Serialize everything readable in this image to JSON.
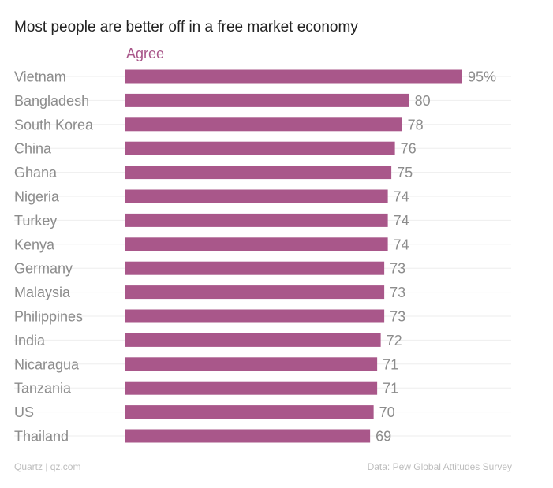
{
  "chart_data": {
    "type": "bar",
    "orientation": "horizontal",
    "title": "Most people are better off in a free market economy",
    "series": [
      {
        "name": "Agree",
        "color": "#a9578a",
        "values": [
          95,
          80,
          78,
          76,
          75,
          74,
          74,
          74,
          73,
          73,
          73,
          72,
          71,
          71,
          70,
          69
        ],
        "value_labels": [
          "95%",
          "80",
          "78",
          "76",
          "75",
          "74",
          "74",
          "74",
          "73",
          "73",
          "73",
          "72",
          "71",
          "71",
          "70",
          "69"
        ]
      }
    ],
    "categories": [
      "Vietnam",
      "Bangladesh",
      "South Korea",
      "China",
      "Ghana",
      "Nigeria",
      "Turkey",
      "Kenya",
      "Germany",
      "Malaysia",
      "Philippines",
      "India",
      "Nicaragua",
      "Tanzania",
      "US",
      "Thailand"
    ],
    "xlim": [
      0,
      100
    ],
    "grid": true,
    "colors": {
      "bar": "#a9578a",
      "label_text": "#8c8c8c",
      "value_text": "#8c8c8c",
      "series_label": "#a9578a",
      "gridline": "#eeeeee",
      "axis": "#888888"
    }
  },
  "footer": {
    "source_left": "Quartz | qz.com",
    "source_right": "Data: Pew Global Attitudes Survey"
  }
}
